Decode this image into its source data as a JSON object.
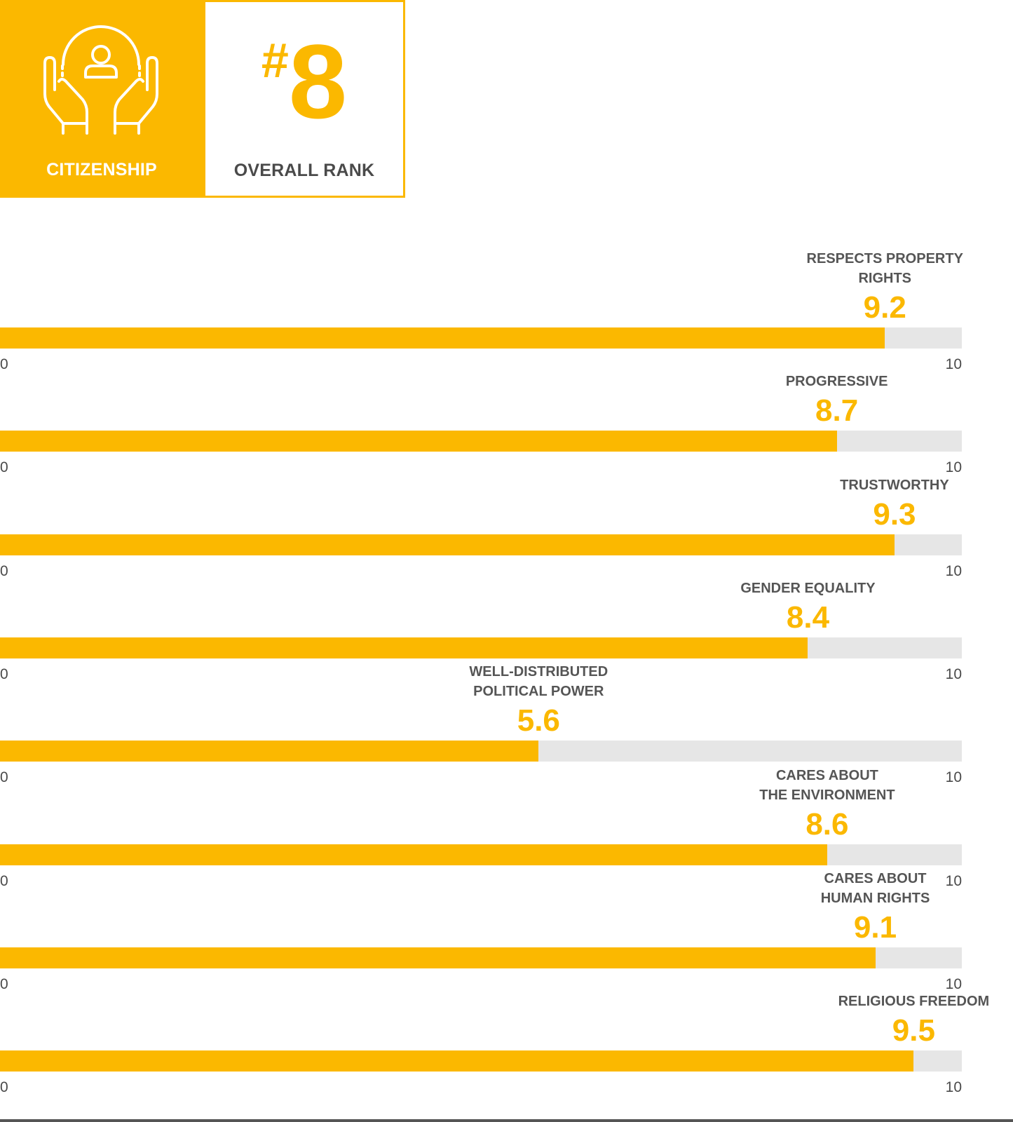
{
  "header": {
    "category_label": "CITIZENSHIP",
    "category_icon": "hands-holding-person-icon",
    "rank_hash": "#",
    "rank_number": "8",
    "rank_label": "OVERALL RANK"
  },
  "colors": {
    "accent": "#fbb800",
    "track": "#e6e6e6",
    "label_text": "#555555"
  },
  "chart_data": {
    "type": "bar",
    "orientation": "horizontal",
    "xlim": [
      0,
      10
    ],
    "axis_min_label": "0",
    "axis_max_label": "10",
    "grid": false,
    "categories": [
      "RESPECTS PROPERTY\nRIGHTS",
      "PROGRESSIVE",
      "TRUSTWORTHY",
      "GENDER EQUALITY",
      "WELL-DISTRIBUTED\nPOLITICAL POWER",
      "CARES ABOUT\nTHE ENVIRONMENT",
      "CARES ABOUT\nHUMAN RIGHTS",
      "RELIGIOUS FREEDOM"
    ],
    "values": [
      9.2,
      8.7,
      9.3,
      8.4,
      5.6,
      8.6,
      9.1,
      9.5
    ],
    "value_labels": [
      "9.2",
      "8.7",
      "9.3",
      "8.4",
      "5.6",
      "8.6",
      "9.1",
      "9.5"
    ]
  }
}
